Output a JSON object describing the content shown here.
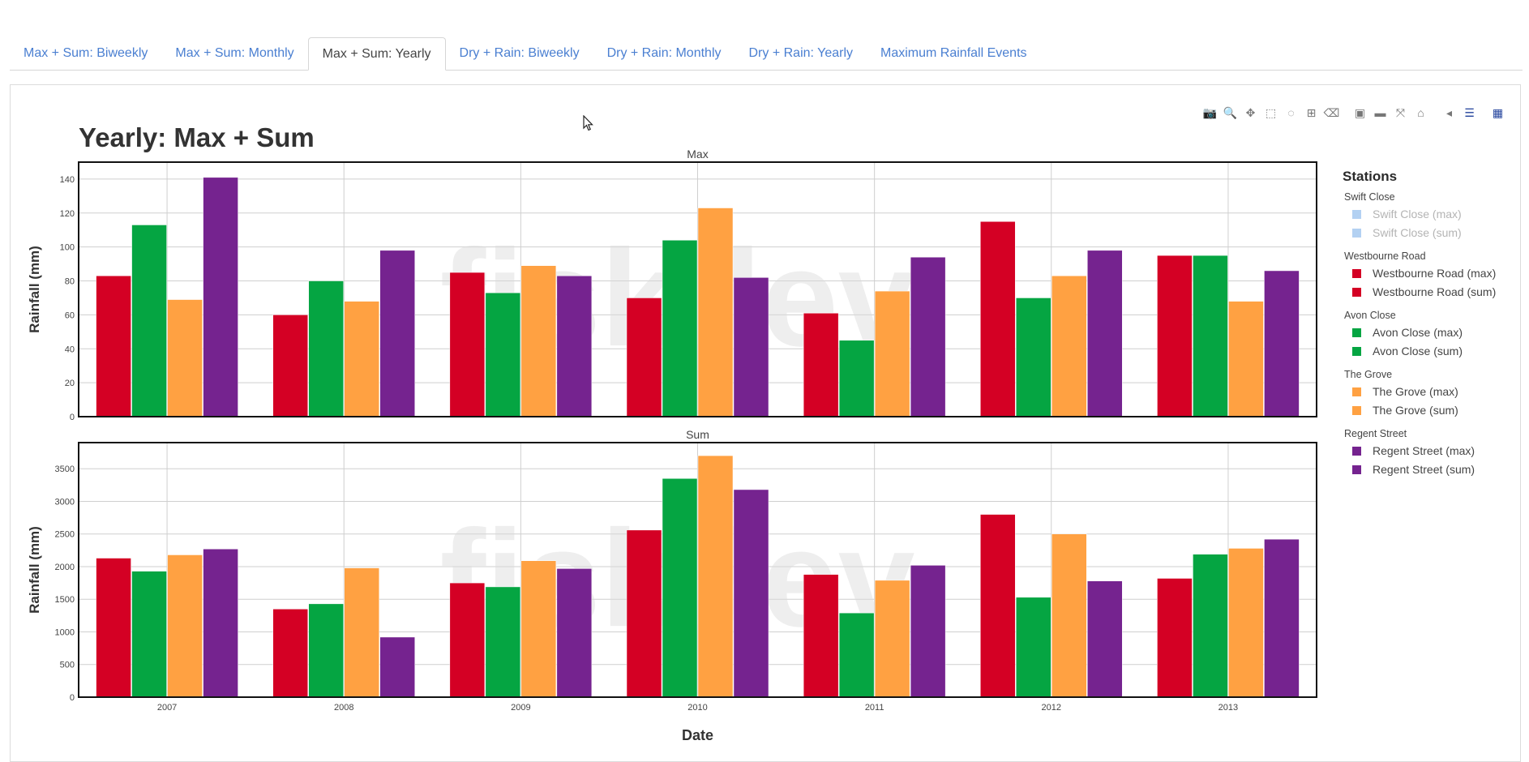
{
  "tabs": [
    {
      "label": "Max + Sum: Biweekly",
      "active": false
    },
    {
      "label": "Max + Sum: Monthly",
      "active": false
    },
    {
      "label": "Max + Sum: Yearly",
      "active": true
    },
    {
      "label": "Dry + Rain: Biweekly",
      "active": false
    },
    {
      "label": "Dry + Rain: Monthly",
      "active": false
    },
    {
      "label": "Dry + Rain: Yearly",
      "active": false
    },
    {
      "label": "Maximum Rainfall Events",
      "active": false
    }
  ],
  "modebar": [
    {
      "name": "camera-icon",
      "glyph": "📷"
    },
    {
      "name": "zoom-icon",
      "glyph": "🔍",
      "active": true
    },
    {
      "name": "pan-icon",
      "glyph": "✥"
    },
    {
      "name": "box-select-icon",
      "glyph": "⬚"
    },
    {
      "name": "lasso-select-icon",
      "glyph": "◌"
    },
    {
      "name": "zoom-in-icon",
      "glyph": "⊞"
    },
    {
      "name": "eraser-icon",
      "glyph": "⌫"
    },
    {
      "name": "plus-icon",
      "glyph": "▣",
      "gap": true
    },
    {
      "name": "minus-icon",
      "glyph": "▬"
    },
    {
      "name": "autoscale-icon",
      "glyph": "⤧"
    },
    {
      "name": "home-icon",
      "glyph": "⌂"
    },
    {
      "name": "spike-lines-icon",
      "glyph": "◂",
      "gap": true
    },
    {
      "name": "compare-data-icon",
      "glyph": "☰",
      "active": true
    },
    {
      "name": "plotly-logo-icon",
      "glyph": "▦",
      "gap": true,
      "active": true
    }
  ],
  "watermark": "fiskdev",
  "legend": {
    "title": "Stations",
    "groups": [
      {
        "title": "Swift Close",
        "items": [
          {
            "label": "Swift Close (max)",
            "color": "#b3d1f2",
            "visible": false
          },
          {
            "label": "Swift Close (sum)",
            "color": "#b3d1f2",
            "visible": false
          }
        ]
      },
      {
        "title": "Westbourne Road",
        "items": [
          {
            "label": "Westbourne Road (max)",
            "color": "#d40024",
            "visible": true
          },
          {
            "label": "Westbourne Road (sum)",
            "color": "#d40024",
            "visible": true
          }
        ]
      },
      {
        "title": "Avon Close",
        "items": [
          {
            "label": "Avon Close (max)",
            "color": "#05a542",
            "visible": true
          },
          {
            "label": "Avon Close (sum)",
            "color": "#05a542",
            "visible": true
          }
        ]
      },
      {
        "title": "The Grove",
        "items": [
          {
            "label": "The Grove (max)",
            "color": "#ffa142",
            "visible": true
          },
          {
            "label": "The Grove (sum)",
            "color": "#ffa142",
            "visible": true
          }
        ]
      },
      {
        "title": "Regent Street",
        "items": [
          {
            "label": "Regent Street (max)",
            "color": "#75238f",
            "visible": true
          },
          {
            "label": "Regent Street (sum)",
            "color": "#75238f",
            "visible": true
          }
        ]
      }
    ]
  },
  "chart_data": {
    "type": "bar",
    "title": "Yearly: Max + Sum",
    "xlabel": "Date",
    "categories": [
      "2007",
      "2008",
      "2009",
      "2010",
      "2011",
      "2012",
      "2013"
    ],
    "series_colors": {
      "Westbourne Road": "#d40024",
      "Avon Close": "#05a542",
      "The Grove": "#ffa142",
      "Regent Street": "#75238f"
    },
    "subplots": [
      {
        "title": "Max",
        "ylabel": "Rainfall (mm)",
        "ylim": [
          0,
          150
        ],
        "yticks": [
          0,
          20,
          40,
          60,
          80,
          100,
          120,
          140
        ],
        "series": [
          {
            "name": "Westbourne Road (max)",
            "station": "Westbourne Road",
            "values": [
              83,
              60,
              85,
              70,
              61,
              115,
              95
            ]
          },
          {
            "name": "Avon Close (max)",
            "station": "Avon Close",
            "values": [
              113,
              80,
              73,
              104,
              45,
              70,
              95
            ]
          },
          {
            "name": "The Grove (max)",
            "station": "The Grove",
            "values": [
              69,
              68,
              89,
              123,
              74,
              83,
              68
            ]
          },
          {
            "name": "Regent Street (max)",
            "station": "Regent Street",
            "values": [
              141,
              98,
              83,
              82,
              94,
              98,
              86
            ]
          }
        ]
      },
      {
        "title": "Sum",
        "ylabel": "Rainfall (mm)",
        "ylim": [
          0,
          3900
        ],
        "yticks": [
          0,
          500,
          1000,
          1500,
          2000,
          2500,
          3000,
          3500
        ],
        "series": [
          {
            "name": "Westbourne Road (sum)",
            "station": "Westbourne Road",
            "values": [
              2130,
              1350,
              1750,
              2560,
              1880,
              2800,
              1820
            ]
          },
          {
            "name": "Avon Close (sum)",
            "station": "Avon Close",
            "values": [
              1930,
              1430,
              1690,
              3350,
              1290,
              1530,
              2190
            ]
          },
          {
            "name": "The Grove (sum)",
            "station": "The Grove",
            "values": [
              2180,
              1980,
              2090,
              3700,
              1790,
              2500,
              2280
            ]
          },
          {
            "name": "Regent Street (sum)",
            "station": "Regent Street",
            "values": [
              2270,
              920,
              1970,
              3180,
              2020,
              1780,
              2420
            ]
          }
        ]
      }
    ],
    "grid": true,
    "legend_position": "right"
  }
}
